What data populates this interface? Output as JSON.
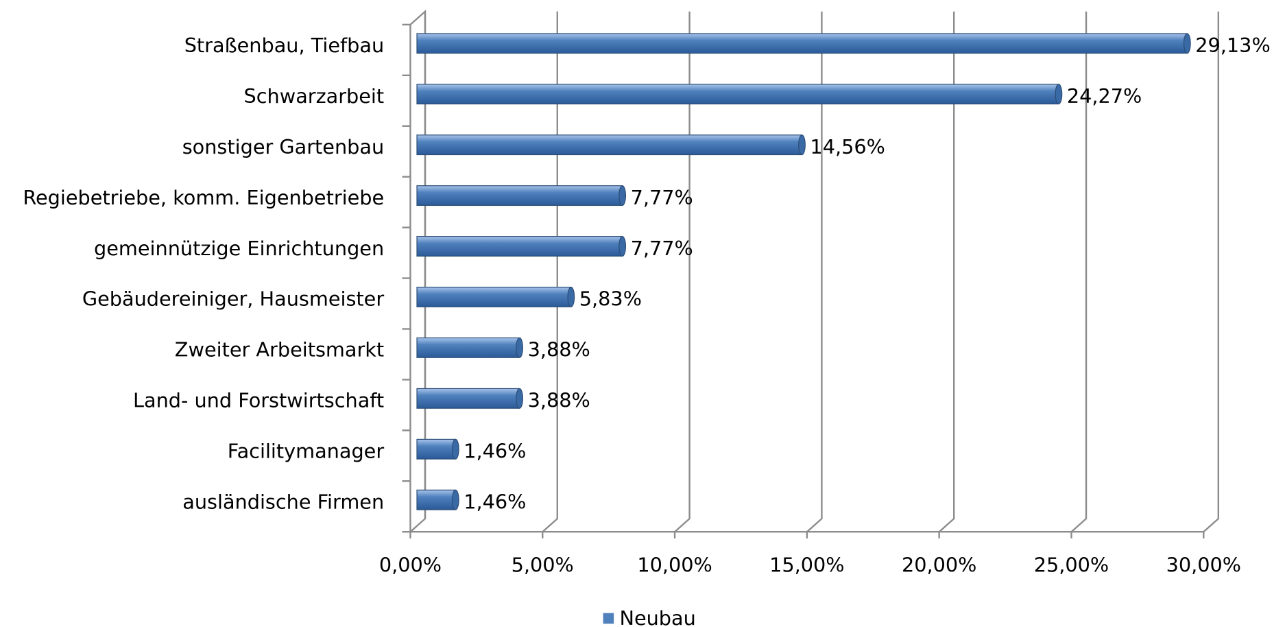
{
  "chart_data": {
    "type": "bar",
    "orientation": "horizontal",
    "categories": [
      "Straßenbau, Tiefbau",
      "Schwarzarbeit",
      "sonstiger Gartenbau",
      "Regiebetriebe, komm. Eigenbetriebe",
      "gemeinnützige Einrichtungen",
      "Gebäudereiniger, Hausmeister",
      "Zweiter Arbeitsmarkt",
      "Land- und Forstwirtschaft",
      "Facilitymanager",
      "ausländische Firmen"
    ],
    "series": [
      {
        "name": "Neubau",
        "color": "#4f81bd",
        "values": [
          29.13,
          24.27,
          14.56,
          7.77,
          7.77,
          5.83,
          3.88,
          3.88,
          1.46,
          1.46
        ],
        "value_labels": [
          "29,13%",
          "24,27%",
          "14,56%",
          "7,77%",
          "7,77%",
          "5,83%",
          "3,88%",
          "3,88%",
          "1,46%",
          "1,46%"
        ]
      }
    ],
    "xlim": [
      0,
      30
    ],
    "xticks": [
      {
        "value": 0,
        "label": "0,00%"
      },
      {
        "value": 5,
        "label": "5,00%"
      },
      {
        "value": 10,
        "label": "10,00%"
      },
      {
        "value": 15,
        "label": "15,00%"
      },
      {
        "value": 20,
        "label": "20,00%"
      },
      {
        "value": 25,
        "label": "25,00%"
      },
      {
        "value": 30,
        "label": "30,00%"
      }
    ],
    "grid": true,
    "legend": "bottom"
  }
}
